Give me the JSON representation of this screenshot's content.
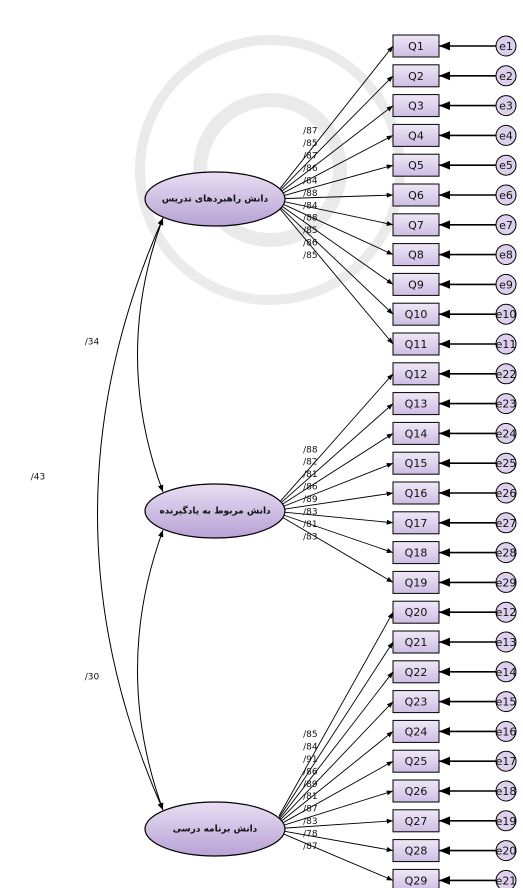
{
  "factors": [
    {
      "label": "دانش راهبردهای تدریس",
      "loadings": [
        "/87",
        "/85",
        "/87",
        "/86",
        "/84",
        "/88",
        "/84",
        "/88",
        "/85",
        "/86",
        "/85"
      ]
    },
    {
      "label": "دانش مربوط به یادگیرنده",
      "loadings": [
        "/88",
        "/82",
        "/81",
        "/86",
        "/89",
        "/83",
        "/81",
        "/83"
      ]
    },
    {
      "label": "دانش برنامه درسی",
      "loadings": [
        "/85",
        "/84",
        "/91",
        "/86",
        "/89",
        "/81",
        "/87",
        "/83",
        "/78",
        "/87"
      ]
    }
  ],
  "items": [
    "Q1",
    "Q2",
    "Q3",
    "Q4",
    "Q5",
    "Q6",
    "Q7",
    "Q8",
    "Q9",
    "Q10",
    "Q11",
    "Q12",
    "Q13",
    "Q14",
    "Q15",
    "Q16",
    "Q17",
    "Q18",
    "Q19",
    "Q20",
    "Q21",
    "Q22",
    "Q23",
    "Q24",
    "Q25",
    "Q26",
    "Q27",
    "Q28",
    "Q29"
  ],
  "errors": [
    "e1",
    "e2",
    "e3",
    "e4",
    "e5",
    "e6",
    "e7",
    "e8",
    "e9",
    "e10",
    "e11",
    "e22",
    "e23",
    "e24",
    "e25",
    "e26",
    "e27",
    "e28",
    "e29",
    "e12",
    "e13",
    "e14",
    "e15",
    "e16",
    "e17",
    "e18",
    "e19",
    "e20",
    "e21"
  ],
  "correlations": [
    "/34",
    "/30",
    "/43"
  ]
}
